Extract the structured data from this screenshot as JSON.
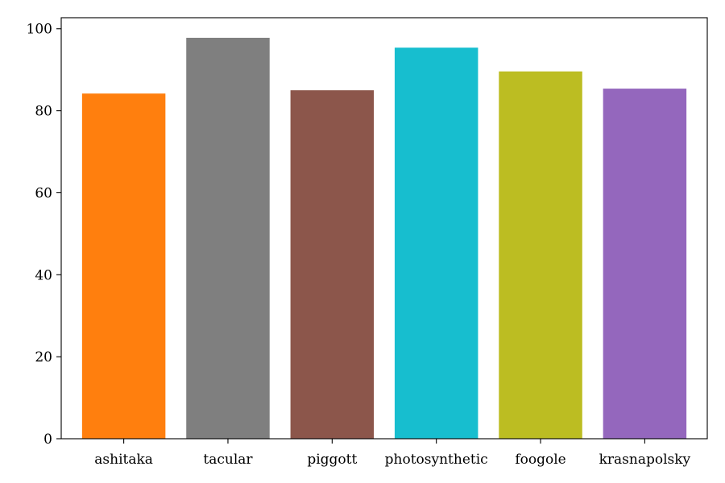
{
  "chart_data": {
    "type": "bar",
    "title": "",
    "xlabel": "",
    "ylabel": "",
    "categories": [
      "ashitaka",
      "tacular",
      "piggott",
      "photosynthetic",
      "foogole",
      "krasnapolsky"
    ],
    "values": [
      84.2,
      97.8,
      85.0,
      95.4,
      89.6,
      85.4
    ],
    "colors": [
      "#ff7f0e",
      "#7f7f7f",
      "#8c564b",
      "#17becf",
      "#bcbd22",
      "#9467bd"
    ],
    "ylim": [
      0,
      102.7
    ],
    "yticks": [
      0,
      20,
      40,
      60,
      80,
      100
    ],
    "grid": false,
    "legend": "none"
  }
}
